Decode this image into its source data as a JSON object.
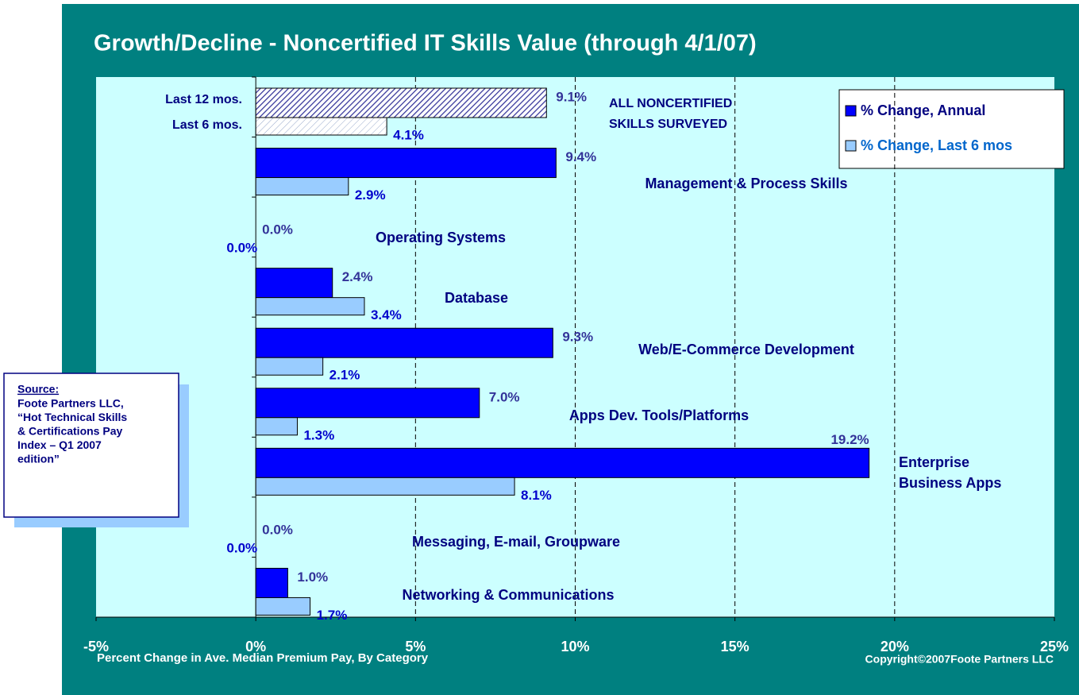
{
  "chart_data": {
    "type": "bar",
    "orientation": "horizontal",
    "title": "Growth/Decline - Noncertified IT Skills Value (through 4/1/07)",
    "x_axis_label": "Percent Change in Ave. Median Premium Pay, By Category",
    "copyright": "Copyright©2007Foote Partners LLC",
    "categories": [
      [
        "ALL NONCERTIFIED",
        "SKILLS SURVEYED"
      ],
      [
        "Management & Process Skills"
      ],
      [
        "Operating Systems"
      ],
      [
        "Database"
      ],
      [
        "Web/E-Commerce Development"
      ],
      [
        "Apps Dev. Tools/Platforms"
      ],
      [
        "Enterprise",
        "Business Apps"
      ],
      [
        "Messaging, E-mail, Groupware"
      ],
      [
        "Networking & Communications"
      ]
    ],
    "series": [
      {
        "name": "% Change, Annual",
        "color": "#0000ff",
        "label_color": "#333399",
        "legend_color": "#000080",
        "values": [
          9.1,
          9.4,
          0.0,
          2.4,
          9.3,
          7.0,
          19.2,
          0.0,
          1.0
        ],
        "value_labels": [
          "9.1%",
          "9.4%",
          "0.0%",
          "2.4%",
          "9.3%",
          "7.0%",
          "19.2%",
          "0.0%",
          "1.0%"
        ]
      },
      {
        "name": "% Change, Last 6 mos",
        "color": "#99ccff",
        "label_color": "#0000cc",
        "legend_color": "#0066cc",
        "values": [
          4.1,
          2.9,
          0.0,
          3.4,
          2.1,
          1.3,
          8.1,
          0.0,
          1.7
        ],
        "value_labels": [
          "4.1%",
          "2.9%",
          "0.0%",
          "3.4%",
          "2.1%",
          "1.3%",
          "8.1%",
          "0.0%",
          "1.7%"
        ]
      }
    ],
    "annotations": [
      "Last 12 mos.",
      "Last 6 mos."
    ],
    "source": {
      "heading": "Source:",
      "lines": [
        "Foote Partners LLC,",
        "“Hot Technical Skills",
        "& Certifications Pay",
        "Index – Q1 2007",
        "edition”"
      ]
    },
    "xlim": [
      -5,
      25
    ],
    "xticks": [
      {
        "value": -5,
        "label": "-5%"
      },
      {
        "value": 0,
        "label": "0%"
      },
      {
        "value": 5,
        "label": "5%"
      },
      {
        "value": 10,
        "label": "10%"
      },
      {
        "value": 15,
        "label": "15%"
      },
      {
        "value": 20,
        "label": "20%"
      },
      {
        "value": 25,
        "label": "25%"
      }
    ],
    "grid": true,
    "legend": "top-right",
    "hatched_categories": [
      0
    ]
  }
}
